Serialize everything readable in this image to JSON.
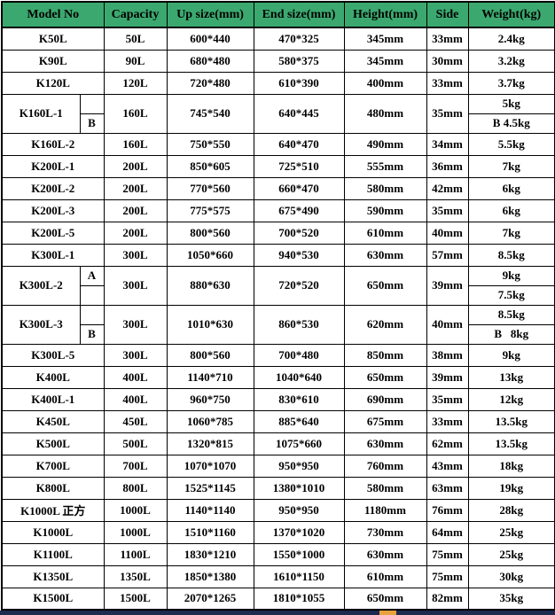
{
  "colors": {
    "header_bg": "#3ba96f",
    "border": "#000000",
    "bottom_bar": "#1c2b4e",
    "bottom_accent": "#e8a23c"
  },
  "table": {
    "columns": [
      "Model No",
      "Capacity",
      "Up size(mm)",
      "End size(mm)",
      "Height(mm)",
      "Side",
      "Weight(kg)"
    ],
    "rows": [
      {
        "model": "K50L",
        "capacity": "50L",
        "up": "600*440",
        "end": "470*325",
        "height": "345mm",
        "side": "33mm",
        "weight": "2.4kg"
      },
      {
        "model": "K90L",
        "capacity": "90L",
        "up": "680*480",
        "end": "580*375",
        "height": "345mm",
        "side": "30mm",
        "weight": "3.2kg"
      },
      {
        "model": "K120L",
        "capacity": "120L",
        "up": "720*480",
        "end": "610*390",
        "height": "400mm",
        "side": "33mm",
        "weight": "3.7kg"
      },
      {
        "split": true,
        "model": "K160L-1",
        "letter_top": "",
        "letter_bottom": "B",
        "capacity": "160L",
        "up": "745*540",
        "end": "640*445",
        "height": "480mm",
        "side": "35mm",
        "weight_top": "5kg",
        "weight_bottom": "B 4.5kg"
      },
      {
        "model": "K160L-2",
        "capacity": "160L",
        "up": "750*550",
        "end": "640*470",
        "height": "490mm",
        "side": "34mm",
        "weight": "5.5kg"
      },
      {
        "model": "K200L-1",
        "capacity": "200L",
        "up": "850*605",
        "end": "725*510",
        "height": "555mm",
        "side": "36mm",
        "weight": "7kg"
      },
      {
        "model": "K200L-2",
        "capacity": "200L",
        "up": "770*560",
        "end": "660*470",
        "height": "580mm",
        "side": "42mm",
        "weight": "6kg"
      },
      {
        "model": "K200L-3",
        "capacity": "200L",
        "up": "775*575",
        "end": "675*490",
        "height": "590mm",
        "side": "35mm",
        "weight": "6kg"
      },
      {
        "model": "K200L-5",
        "capacity": "200L",
        "up": "800*560",
        "end": "700*520",
        "height": "610mm",
        "side": "40mm",
        "weight": "7kg"
      },
      {
        "model": "K300L-1",
        "capacity": "300L",
        "up": "1050*660",
        "end": "940*530",
        "height": "630mm",
        "side": "57mm",
        "weight": "8.5kg"
      },
      {
        "split": true,
        "model": "K300L-2",
        "letter_top": "A",
        "letter_bottom": "",
        "capacity": "300L",
        "up": "880*630",
        "end": "720*520",
        "height": "650mm",
        "side": "39mm",
        "weight_top": "9kg",
        "weight_bottom": "7.5kg"
      },
      {
        "split": true,
        "model": "K300L-3",
        "letter_top": "",
        "letter_bottom": "B",
        "capacity": "300L",
        "up": "1010*630",
        "end": "860*530",
        "height": "620mm",
        "side": "40mm",
        "weight_top": "8.5kg",
        "weight_bottom": "B   8kg"
      },
      {
        "model": "K300L-5",
        "capacity": "300L",
        "up": "800*560",
        "end": "700*480",
        "height": "850mm",
        "side": "38mm",
        "weight": "9kg"
      },
      {
        "model": "K400L",
        "capacity": "400L",
        "up": "1140*710",
        "end": "1040*640",
        "height": "650mm",
        "side": "39mm",
        "weight": "13kg"
      },
      {
        "model": "K400L-1",
        "capacity": "400L",
        "up": "960*750",
        "end": "830*610",
        "height": "690mm",
        "side": "35mm",
        "weight": "12kg"
      },
      {
        "model": "K450L",
        "capacity": "450L",
        "up": "1060*785",
        "end": "885*640",
        "height": "675mm",
        "side": "33mm",
        "weight": "13.5kg"
      },
      {
        "model": "K500L",
        "capacity": "500L",
        "up": "1320*815",
        "end": "1075*660",
        "height": "630mm",
        "side": "62mm",
        "weight": "13.5kg"
      },
      {
        "model": "K700L",
        "capacity": "700L",
        "up": "1070*1070",
        "end": "950*950",
        "height": "760mm",
        "side": "43mm",
        "weight": "18kg"
      },
      {
        "model": "K800L",
        "capacity": "800L",
        "up": "1525*1145",
        "end": "1380*1010",
        "height": "580mm",
        "side": "63mm",
        "weight": "19kg"
      },
      {
        "model": "K1000L 正方",
        "capacity": "1000L",
        "up": "1140*1140",
        "end": "950*950",
        "height": "1180mm",
        "side": "76mm",
        "weight": "28kg"
      },
      {
        "model": "K1000L",
        "capacity": "1000L",
        "up": "1510*1160",
        "end": "1370*1020",
        "height": "730mm",
        "side": "64mm",
        "weight": "25kg"
      },
      {
        "model": "K1100L",
        "capacity": "1100L",
        "up": "1830*1210",
        "end": "1550*1000",
        "height": "630mm",
        "side": "75mm",
        "weight": "25kg"
      },
      {
        "model": "K1350L",
        "capacity": "1350L",
        "up": "1850*1380",
        "end": "1610*1150",
        "height": "610mm",
        "side": "75mm",
        "weight": "30kg"
      },
      {
        "model": "K1500L",
        "capacity": "1500L",
        "up": "2070*1265",
        "end": "1810*1055",
        "height": "650mm",
        "side": "82mm",
        "weight": "35kg"
      }
    ]
  }
}
